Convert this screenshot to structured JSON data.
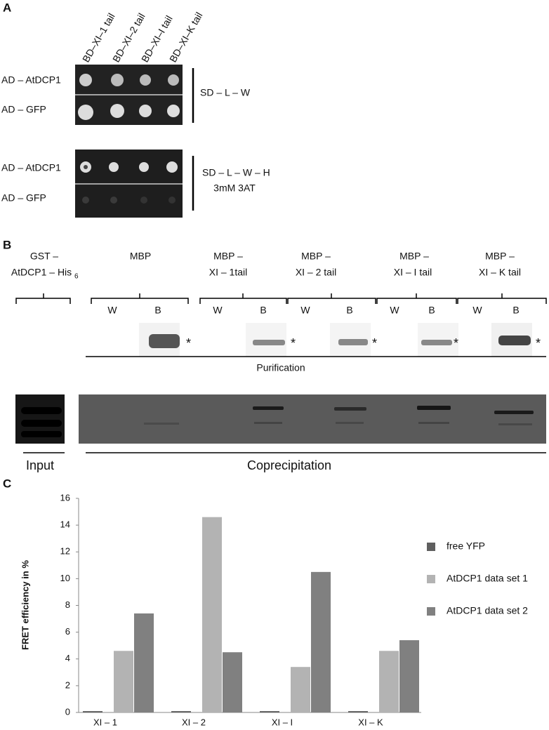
{
  "panel_a": {
    "label": "A",
    "columns": [
      "BD–XI–1 tail",
      "BD–XI–2 tail",
      "BD–XI–I tail",
      "BD–XI–K tail"
    ],
    "rows_top": [
      "AD – AtDCP1",
      "AD – GFP"
    ],
    "medium_top": "SD – L – W",
    "rows_bottom": [
      "AD – AtDCP1",
      "AD – GFP"
    ],
    "medium_bottom": [
      "SD – L – W – H",
      "3mM 3AT"
    ]
  },
  "panel_b": {
    "label": "B",
    "input_header": {
      "line1": "GST –",
      "line2": "AtDCP1 – His",
      "subscript": "6"
    },
    "groups": [
      {
        "line1": "MBP"
      },
      {
        "line1": "MBP –",
        "line2": "XI – 1tail"
      },
      {
        "line1": "MBP –",
        "line2": "XI – 2 tail"
      },
      {
        "line1": "MBP –",
        "line2": "XI – I tail"
      },
      {
        "line1": "MBP –",
        "line2": "XI – K tail"
      }
    ],
    "lanes": [
      "W",
      "B"
    ],
    "band_marker": "*",
    "purification": "Purification",
    "input": "Input",
    "coprecipitation": "Coprecipitation"
  },
  "chart_data": {
    "type": "bar",
    "panel_label": "C",
    "y_label": "FRET efficiency in %",
    "categories": [
      "XI – 1",
      "XI – 2",
      "XI – I",
      "XI – K"
    ],
    "series": [
      {
        "name": "free YFP",
        "color": "#5f5f5f",
        "values": [
          0.1,
          0.1,
          0.1,
          0.1
        ]
      },
      {
        "name": "AtDCP1 data set 1",
        "color": "#b3b3b3",
        "values": [
          4.6,
          14.6,
          3.4,
          4.6
        ]
      },
      {
        "name": "AtDCP1 data set 2",
        "color": "#808080",
        "values": [
          7.4,
          4.5,
          10.5,
          5.4
        ]
      }
    ],
    "ylim": [
      0,
      16
    ],
    "yticks": [
      0,
      2,
      4,
      6,
      8,
      10,
      12,
      14,
      16
    ],
    "grid": false,
    "legend": "right"
  }
}
